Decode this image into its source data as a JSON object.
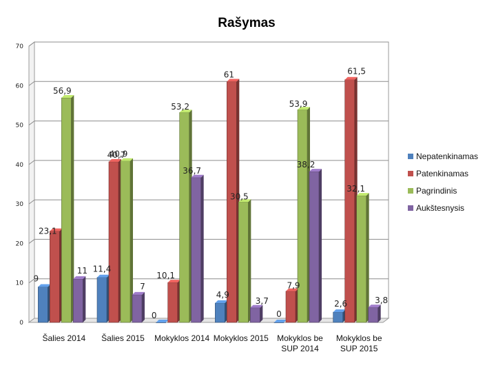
{
  "chart_data": {
    "type": "bar",
    "title": "Rašymas",
    "xlabel": "",
    "ylabel": "",
    "ylim": [
      0,
      70
    ],
    "yticks": [
      0,
      10,
      20,
      30,
      40,
      50,
      60,
      70
    ],
    "grid": true,
    "legend": "right",
    "categories": [
      [
        "Šalies 2014"
      ],
      [
        "Šalies 2015"
      ],
      [
        "Mokyklos 2014"
      ],
      [
        "Mokyklos 2015"
      ],
      [
        "Mokyklos be",
        "SUP 2014"
      ],
      [
        "Mokyklos be",
        "SUP 2015"
      ]
    ],
    "series": [
      {
        "name": "Nepatenkinamas",
        "color": "#4f81bd",
        "values": [
          9,
          11.4,
          0,
          4.9,
          0,
          2.6
        ],
        "labels": [
          "9",
          "11,4",
          "0",
          "4,9",
          "0",
          "2,6"
        ]
      },
      {
        "name": "Patenkinamas",
        "color": "#c0504d",
        "values": [
          23.1,
          40.7,
          10.1,
          61,
          7.9,
          61.5
        ],
        "labels": [
          "23,1",
          "40,7",
          "10,1",
          "61",
          "7,9",
          "61,5"
        ]
      },
      {
        "name": "Pagrindinis",
        "color": "#9bbb59",
        "values": [
          56.9,
          40.9,
          53.2,
          30.5,
          53.9,
          32.1
        ],
        "labels": [
          "56,9",
          "40,9",
          "53,2",
          "30,5",
          "53,9",
          "32,1"
        ]
      },
      {
        "name": "Aukštesnysis",
        "color": "#8064a2",
        "values": [
          11,
          7,
          36.7,
          3.7,
          38.2,
          3.8
        ],
        "labels": [
          "11",
          "7",
          "36,7",
          "3,7",
          "38,2",
          "3,8"
        ]
      }
    ]
  }
}
